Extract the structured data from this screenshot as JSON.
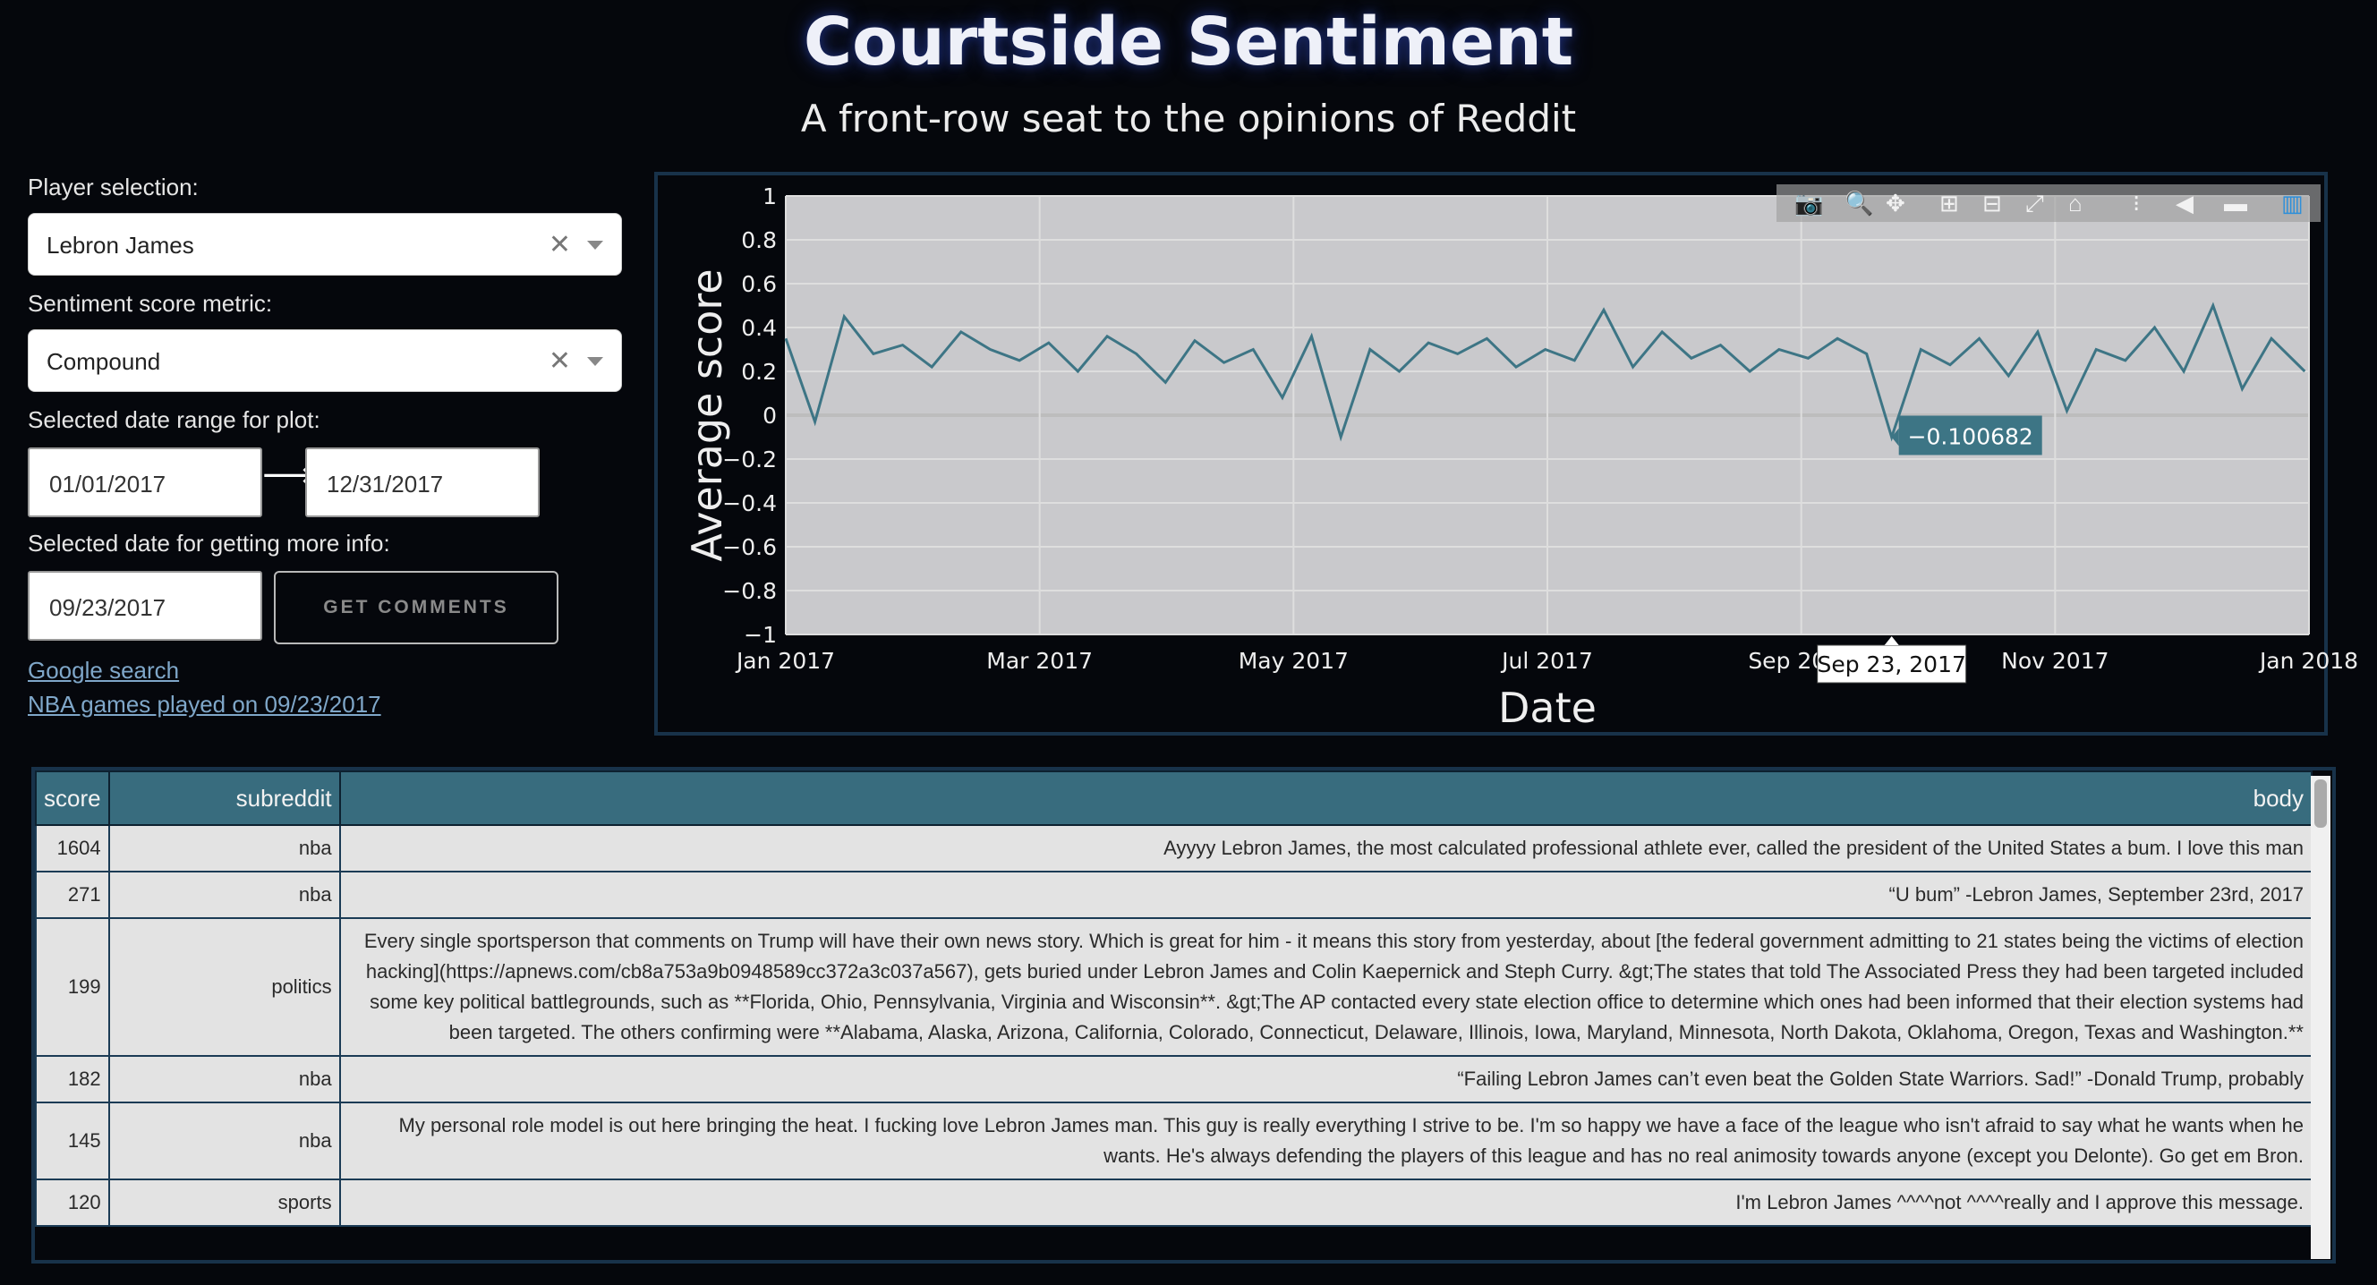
{
  "header": {
    "title": "Courtside Sentiment",
    "subtitle": "A front-row seat to the opinions of Reddit"
  },
  "sidebar": {
    "player_label": "Player selection:",
    "player_value": "Lebron James",
    "metric_label": "Sentiment score metric:",
    "metric_value": "Compound",
    "range_label": "Selected date range for plot:",
    "range_start": "01/01/2017",
    "range_end": "12/31/2017",
    "info_label": "Selected date for getting more info:",
    "info_date": "09/23/2017",
    "get_comments_label": "GET COMMENTS",
    "google_link": "Google search",
    "nba_link": "NBA games played on 09/23/2017"
  },
  "chart_data": {
    "type": "line",
    "ylabel": "Average score",
    "xlabel": "Date",
    "ylim": [
      -1,
      1
    ],
    "y_ticks": [
      "1",
      "0.8",
      "0.6",
      "0.4",
      "0.2",
      "0",
      "−0.2",
      "−0.4",
      "−0.6",
      "−0.8",
      "−1"
    ],
    "x_ticks": [
      "Jan 2017",
      "Mar 2017",
      "May 2017",
      "Jul 2017",
      "Sep 2017",
      "Nov 2017",
      "Jan 2018"
    ],
    "x_range": [
      "2017-01-01",
      "2018-01-01"
    ],
    "grid": true,
    "line_color": "#3d7585",
    "tooltip_value": "−0.100682",
    "tooltip_date": "Sep 23, 2017",
    "series": [
      {
        "x": [
          "2017-01-01",
          "2017-01-08",
          "2017-01-15",
          "2017-01-22",
          "2017-01-29",
          "2017-02-05",
          "2017-02-12",
          "2017-02-19",
          "2017-02-26",
          "2017-03-05",
          "2017-03-12",
          "2017-03-19",
          "2017-03-26",
          "2017-04-02",
          "2017-04-09",
          "2017-04-16",
          "2017-04-23",
          "2017-04-30",
          "2017-05-07",
          "2017-05-14",
          "2017-05-21",
          "2017-05-28",
          "2017-06-04",
          "2017-06-11",
          "2017-06-18",
          "2017-06-25",
          "2017-07-02",
          "2017-07-09",
          "2017-07-16",
          "2017-07-23",
          "2017-07-30",
          "2017-08-06",
          "2017-08-13",
          "2017-08-20",
          "2017-08-27",
          "2017-09-03",
          "2017-09-10",
          "2017-09-17",
          "2017-09-23",
          "2017-09-30",
          "2017-10-07",
          "2017-10-14",
          "2017-10-21",
          "2017-10-28",
          "2017-11-04",
          "2017-11-11",
          "2017-11-18",
          "2017-11-25",
          "2017-12-02",
          "2017-12-09",
          "2017-12-16",
          "2017-12-23",
          "2017-12-31"
        ],
        "y": [
          0.35,
          -0.03,
          0.45,
          0.28,
          0.32,
          0.22,
          0.38,
          0.3,
          0.25,
          0.33,
          0.2,
          0.36,
          0.28,
          0.15,
          0.34,
          0.24,
          0.3,
          0.08,
          0.36,
          -0.1,
          0.3,
          0.2,
          0.33,
          0.28,
          0.35,
          0.22,
          0.3,
          0.25,
          0.48,
          0.22,
          0.38,
          0.26,
          0.32,
          0.2,
          0.3,
          0.26,
          0.35,
          0.28,
          -0.1,
          0.3,
          0.23,
          0.35,
          0.18,
          0.38,
          0.02,
          0.3,
          0.25,
          0.4,
          0.2,
          0.5,
          0.12,
          0.35,
          0.2
        ]
      }
    ]
  },
  "table": {
    "headers": [
      "score",
      "subreddit",
      "body"
    ],
    "rows": [
      {
        "score": "1604",
        "subreddit": "nba",
        "body": "Ayyyy Lebron James, the most calculated professional athlete ever, called the president of the United States a bum. I love this man"
      },
      {
        "score": "271",
        "subreddit": "nba",
        "body": "“U bum” -Lebron James, September 23rd, 2017"
      },
      {
        "score": "199",
        "subreddit": "politics",
        "body": "Every single sportsperson that comments on Trump will have their own news story. Which is great for him - it means this story from yesterday, about [the federal government admitting to 21 states being the victims of election hacking](https://apnews.com/cb8a753a9b0948589cc372a3c037a567), gets buried under Lebron James and Colin Kaepernick and Steph Curry. &gt;The states that told The Associated Press they had been targeted included some key political battlegrounds, such as **Florida, Ohio, Pennsylvania, Virginia and Wisconsin**. &gt;The AP contacted every state election office to determine which ones had been informed that their election systems had been targeted. The others confirming were **Alabama, Alaska, Arizona, California, Colorado, Connecticut, Delaware, Illinois, Iowa, Maryland, Minnesota, North Dakota, Oklahoma, Oregon, Texas and Washington.**"
      },
      {
        "score": "182",
        "subreddit": "nba",
        "body": "“Failing Lebron James can’t even beat the Golden State Warriors. Sad!” -Donald Trump, probably"
      },
      {
        "score": "145",
        "subreddit": "nba",
        "body": "My personal role model is out here bringing the heat. I fucking love Lebron James man. This guy is really everything I strive to be. I'm so happy we have a face of the league who isn't afraid to say what he wants when he wants. He's always defending the players of this league and has no real animosity towards anyone (except you Delonte). Go get em Bron."
      },
      {
        "score": "120",
        "subreddit": "sports",
        "body": "I'm Lebron James ^^^^not ^^^^really and I approve this message."
      }
    ]
  }
}
